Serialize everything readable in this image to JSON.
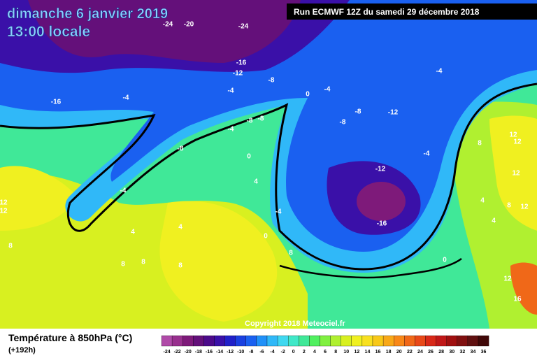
{
  "header": {
    "date": "dimanche 6 janvier 2019",
    "time": "13:00 locale",
    "run": "Run ECMWF 12Z du samedi 29 décembre 2018"
  },
  "copyright": "Copyright 2018 Meteociel.fr",
  "legend": {
    "title": "Température à 850hPa (°C)",
    "lead": "(+192h)",
    "scale": {
      "labels": [
        "-24",
        "-22",
        "-20",
        "-18",
        "-16",
        "-14",
        "-12",
        "-10",
        "-8",
        "-6",
        "-4",
        "-2",
        "0",
        "2",
        "4",
        "6",
        "8",
        "10",
        "12",
        "14",
        "16",
        "18",
        "20",
        "22",
        "24",
        "26",
        "28",
        "30",
        "32",
        "34",
        "36"
      ],
      "colors": [
        "#b04aa8",
        "#98308e",
        "#7e1a7a",
        "#64107a",
        "#4c0a8a",
        "#3a10a8",
        "#2020c8",
        "#1a40e0",
        "#1a60f0",
        "#2090f8",
        "#30b8f8",
        "#40d8f0",
        "#40e8c8",
        "#40e898",
        "#50f060",
        "#80f040",
        "#b0f030",
        "#d8f020",
        "#f0f020",
        "#f8e020",
        "#f8c818",
        "#f8a818",
        "#f88818",
        "#f06818",
        "#e84818",
        "#d82818",
        "#c01818",
        "#a01010",
        "#801010",
        "#601010",
        "#400808"
      ]
    }
  },
  "map_labels": [
    "-24",
    "-20",
    "-24",
    "-16",
    "-12",
    "-8",
    "-4",
    "-16",
    "-4",
    "-4",
    "-8",
    "-8",
    "-8",
    "-4",
    "0",
    "4",
    "-4",
    "0",
    "4",
    "4",
    "8",
    "8",
    "8",
    "8",
    "8",
    "12",
    "12",
    "-8",
    "-8",
    "-12",
    "-4",
    "-12",
    "-16",
    "-4",
    "0",
    "8",
    "12",
    "12",
    "12",
    "8",
    "12",
    "4",
    "4",
    "12",
    "16",
    "0",
    "-4"
  ]
}
